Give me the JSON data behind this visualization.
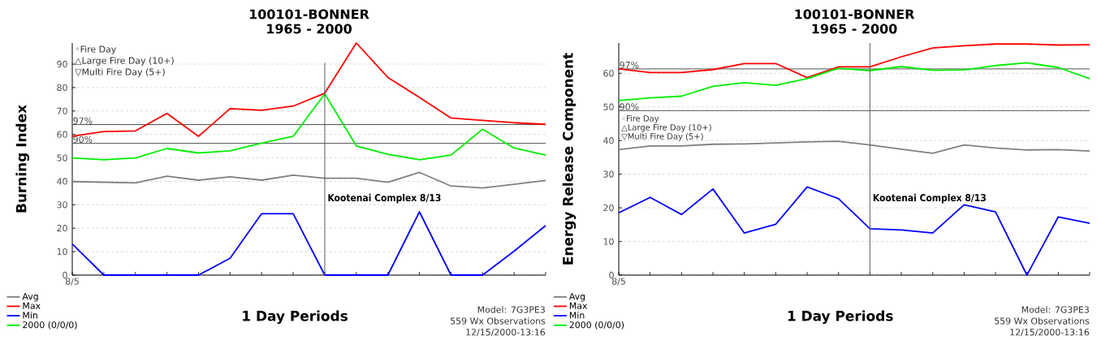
{
  "chart_data": [
    {
      "type": "line",
      "title": "100101-BONNER",
      "subtitle": "1965 - 2000",
      "xlabel": "1 Day Periods",
      "ylabel": "Burning Index",
      "categories": [
        "8/5",
        null,
        null,
        null,
        null,
        null,
        null,
        null,
        null,
        null,
        null,
        null,
        null,
        null,
        null,
        null
      ],
      "series": [
        {
          "name": "Avg",
          "color": "#808080",
          "values": [
            39.9,
            39.6,
            39.3,
            42.2,
            40.5,
            41.9,
            40.5,
            42.6,
            41.3,
            41.3,
            39.6,
            43.8,
            38,
            37.2,
            38.7,
            40.4
          ]
        },
        {
          "name": "Max",
          "color": "#ff0000",
          "values": [
            59.2,
            61.2,
            61.5,
            69,
            59.2,
            71,
            70.3,
            72.1,
            77.6,
            99,
            84.3,
            75.8,
            67,
            66,
            65,
            64.3
          ]
        },
        {
          "name": "Min",
          "color": "#0000ff",
          "values": [
            13.3,
            0,
            0,
            0,
            0,
            7.2,
            26.2,
            26.2,
            0,
            0,
            0,
            27,
            0,
            0,
            10.2,
            21.1
          ]
        },
        {
          "name": "2000 (0/0/0)",
          "color": "#00ee00",
          "values": [
            50,
            49.2,
            50,
            54,
            52.1,
            53,
            56.3,
            59.2,
            77.3,
            55.1,
            51.5,
            49.2,
            51.2,
            62.2,
            54.2,
            51.2
          ]
        }
      ],
      "ylim": [
        0,
        99
      ],
      "yticks": [
        0,
        10,
        20,
        30,
        40,
        50,
        60,
        70,
        80,
        90
      ],
      "grid": "y",
      "legend": "bottom left",
      "ref_lines": [
        {
          "axis": "y",
          "value": 64.2,
          "color": "#505050"
        },
        {
          "axis": "y",
          "value": 56.2,
          "color": "#505050"
        }
      ],
      "annotations": [
        "◦Fire Day",
        "△Large Fire Day (10+)",
        "▽Multi Fire Day (5+)",
        "Model: 7G3PE3",
        "559 Wx Observations",
        "12/15/2000-13:16",
        "Kootenai Complex 8/13",
        {
          "text": "97%",
          "y": 64.2
        },
        {
          "text": "90%",
          "y": 56.2
        }
      ]
    },
    {
      "type": "line",
      "title": "100101-BONNER",
      "subtitle": "1965 - 2000",
      "xlabel": "1 Day Periods",
      "ylabel": "Energy Release Component",
      "categories": [
        "8/5",
        null,
        null,
        null,
        null,
        null,
        null,
        null,
        null,
        null,
        null,
        null,
        null,
        null,
        null,
        null
      ],
      "series": [
        {
          "name": "Avg",
          "color": "#808080",
          "values": [
            37.3,
            38.4,
            38.4,
            38.9,
            39,
            39.3,
            39.6,
            39.8,
            38.7,
            37.4,
            36.2,
            38.7,
            37.8,
            37.2,
            37.3,
            36.9
          ]
        },
        {
          "name": "Max",
          "color": "#ff0000",
          "values": [
            61.3,
            60.2,
            60.2,
            61.1,
            62.9,
            62.9,
            58.7,
            61.9,
            61.9,
            64.9,
            67.5,
            68.2,
            68.7,
            68.7,
            68.4,
            68.5
          ]
        },
        {
          "name": "Min",
          "color": "#0000ff",
          "values": [
            18.5,
            23.1,
            18,
            25.6,
            12.5,
            15.1,
            26.2,
            22.7,
            13.8,
            13.4,
            12.5,
            20.9,
            18.8,
            0,
            17.3,
            15.4
          ]
        },
        {
          "name": "2000 (0/0/0)",
          "color": "#00ee00",
          "values": [
            51.9,
            52.7,
            53.2,
            56.1,
            57.2,
            56.4,
            58.4,
            61.5,
            60.8,
            62,
            60.9,
            61,
            62.3,
            63.1,
            61.7,
            58.4
          ]
        }
      ],
      "ylim": [
        0,
        69
      ],
      "yticks": [
        0,
        10,
        20,
        30,
        40,
        50,
        60
      ],
      "grid": "y",
      "legend": "bottom left",
      "ref_lines": [
        {
          "axis": "y",
          "value": 61.3,
          "color": "#505050"
        },
        {
          "axis": "y",
          "value": 48.9,
          "color": "#505050"
        }
      ],
      "annotations": [
        "◦Fire Day",
        "△Large Fire Day (10+)",
        "▽Multi Fire Day (5+)",
        "Model: 7G3PE3",
        "559 Wx Observations",
        "12/15/2000-13:16",
        "Kootenai Complex 8/13",
        {
          "text": "97%",
          "y": 61.3
        },
        {
          "text": "90%",
          "y": 48.9
        }
      ]
    }
  ]
}
